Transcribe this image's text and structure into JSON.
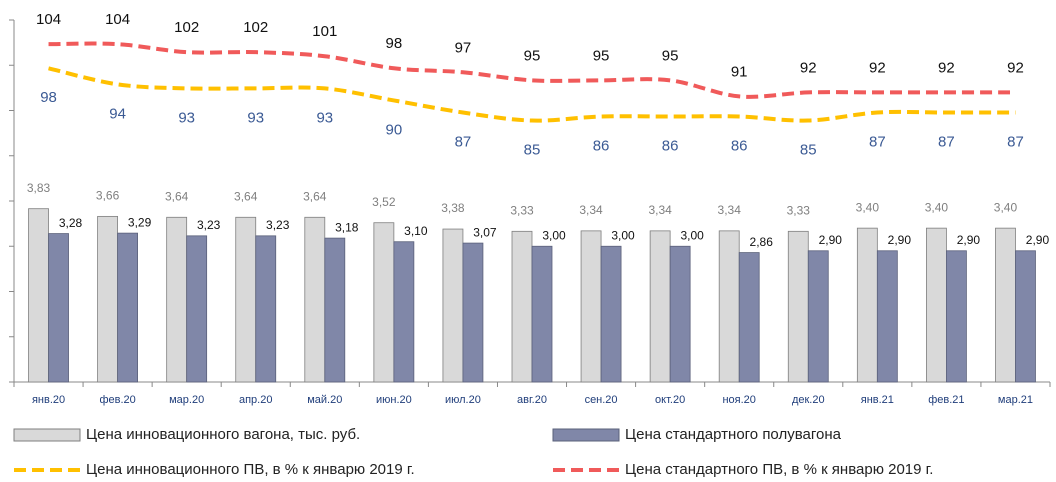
{
  "chart_data": {
    "type": "bar",
    "categories": [
      "янв.20",
      "фев.20",
      "мар.20",
      "апр.20",
      "май.20",
      "июн.20",
      "июл.20",
      "авг.20",
      "сен.20",
      "окт.20",
      "ноя.20",
      "дек.20",
      "янв.21",
      "фев.21",
      "мар.21"
    ],
    "ylim": [
      0,
      8
    ],
    "yticks": [
      0,
      1,
      2,
      3,
      4,
      5,
      6,
      7,
      8
    ],
    "y2lim": [
      20,
      110
    ],
    "series": [
      {
        "name": "Цена инновационного вагона, тыс. руб.",
        "type": "bar",
        "color": "#d9d9d9",
        "values": [
          3.83,
          3.66,
          3.64,
          3.64,
          3.64,
          3.52,
          3.38,
          3.33,
          3.34,
          3.34,
          3.34,
          3.33,
          3.4,
          3.4,
          3.4
        ],
        "value_labels": [
          "3,83",
          "3,66",
          "3,64",
          "3,64",
          "3,64",
          "3,52",
          "3,38",
          "3,33",
          "3,34",
          "3,34",
          "3,34",
          "3,33",
          "3,40",
          "3,40",
          "3,40"
        ]
      },
      {
        "name": "Цена стандартного полувагона",
        "type": "bar",
        "color": "#8087a8",
        "values": [
          3.28,
          3.29,
          3.23,
          3.23,
          3.18,
          3.1,
          3.07,
          3.0,
          3.0,
          3.0,
          2.86,
          2.9,
          2.9,
          2.9,
          2.9
        ],
        "value_labels": [
          "3,28",
          "3,29",
          "3,23",
          "3,23",
          "3,18",
          "3,10",
          "3,07",
          "3,00",
          "3,00",
          "3,00",
          "2,86",
          "2,90",
          "2,90",
          "2,90",
          "2,90"
        ]
      },
      {
        "name": "Цена инновационного ПВ, в % к январю 2019 г.",
        "type": "line",
        "axis": "y2",
        "color": "#ffc000",
        "values": [
          98,
          94,
          93,
          93,
          93,
          90,
          87,
          85,
          86,
          86,
          86,
          85,
          87,
          87,
          87
        ]
      },
      {
        "name": "Цена стандартного ПВ, в % к январю 2019 г.",
        "type": "line",
        "axis": "y2",
        "color": "#f05a5a",
        "values": [
          104,
          104,
          102,
          102,
          101,
          98,
          97,
          95,
          95,
          95,
          91,
          92,
          92,
          92,
          92
        ]
      }
    ]
  }
}
